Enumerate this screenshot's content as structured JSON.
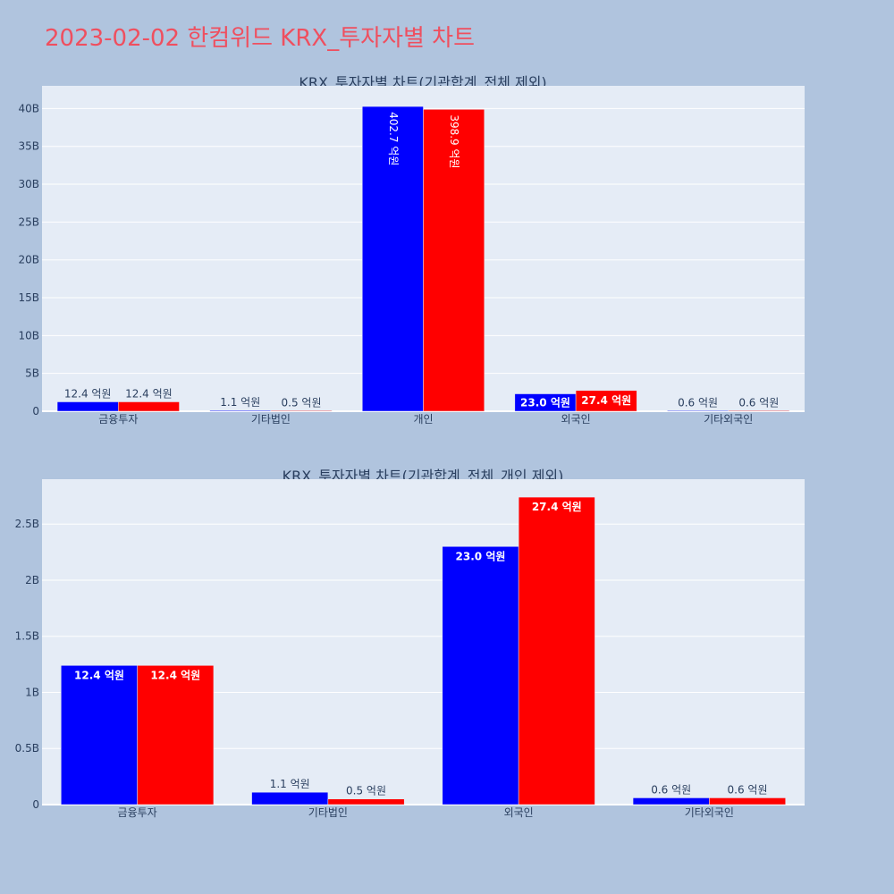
{
  "page": {
    "title": "2023-02-02 한컴위드 KRX_투자자별 차트"
  },
  "colors": {
    "background": "#b0c4de",
    "plot_background": "#e5ecf6",
    "buy_series": "#0000ff",
    "sell_series": "#ff0000",
    "title_color": "#ef4f5f"
  },
  "chart_data": [
    {
      "type": "bar",
      "title": "KRX_투자자별 차트(기관합계_전체 제외)",
      "categories": [
        "금융투자",
        "기타법인",
        "개인",
        "외국인",
        "기타외국인"
      ],
      "series": [
        {
          "values": [
            1240000000,
            110000000,
            40270000000,
            2300000000,
            60000000
          ],
          "labels": [
            "12.4 억원",
            "1.1 억원",
            "402.7 억원",
            "23.0 억원",
            "0.6 억원"
          ]
        },
        {
          "values": [
            1240000000,
            50000000,
            39890000000,
            2740000000,
            60000000
          ],
          "labels": [
            "12.4 억원",
            "0.5 억원",
            "398.9 억원",
            "27.4 억원",
            "0.6 억원"
          ]
        }
      ],
      "ylim": [
        0,
        43000000000
      ],
      "yticks": [
        0,
        5000000000,
        10000000000,
        15000000000,
        20000000000,
        25000000000,
        30000000000,
        35000000000,
        40000000000
      ],
      "ytick_labels": [
        "0",
        "5B",
        "10B",
        "15B",
        "20B",
        "25B",
        "30B",
        "35B",
        "40B"
      ],
      "grid": true,
      "xlabel": "",
      "ylabel": ""
    },
    {
      "type": "bar",
      "title": "KRX_투자자별 차트(기관합계_전체_개인 제외)",
      "categories": [
        "금융투자",
        "기타법인",
        "외국인",
        "기타외국인"
      ],
      "series": [
        {
          "values": [
            1240000000,
            110000000,
            2300000000,
            60000000
          ],
          "labels": [
            "12.4 억원",
            "1.1 억원",
            "23.0 억원",
            "0.6 억원"
          ]
        },
        {
          "values": [
            1240000000,
            50000000,
            2740000000,
            60000000
          ],
          "labels": [
            "12.4 억원",
            "0.5 억원",
            "27.4 억원",
            "0.6 억원"
          ]
        }
      ],
      "ylim": [
        0,
        2900000000
      ],
      "yticks": [
        0,
        500000000,
        1000000000,
        1500000000,
        2000000000,
        2500000000
      ],
      "ytick_labels": [
        "0",
        "0.5B",
        "1B",
        "1.5B",
        "2B",
        "2.5B"
      ],
      "grid": true,
      "xlabel": "",
      "ylabel": ""
    }
  ]
}
